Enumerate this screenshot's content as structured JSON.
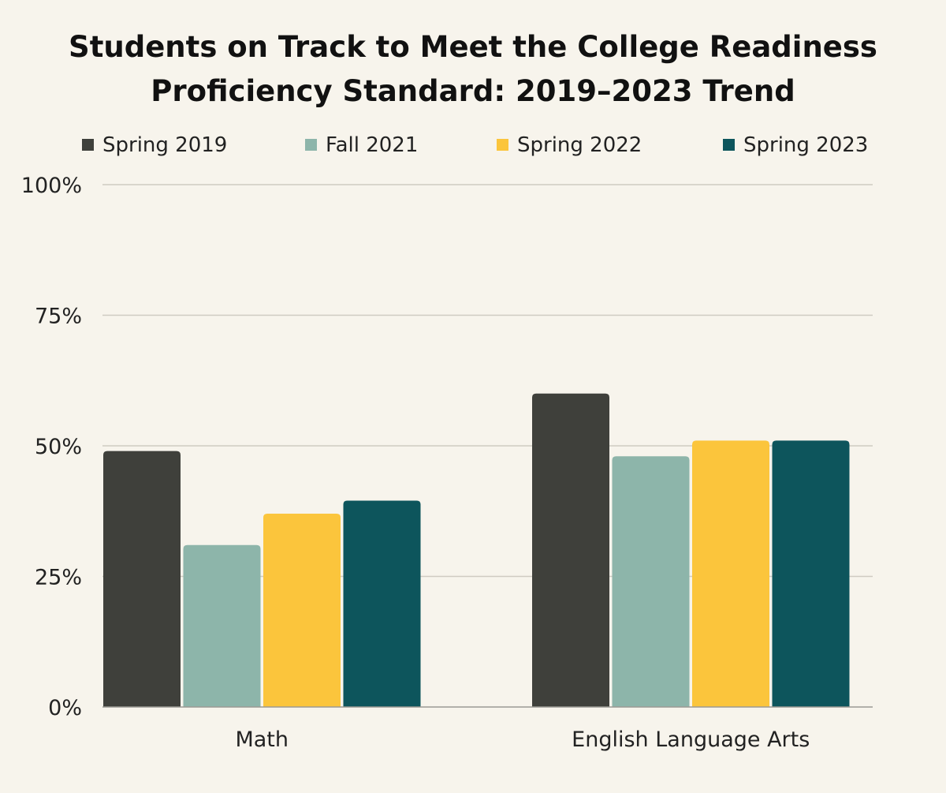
{
  "chart_data": {
    "type": "bar",
    "title_lines": [
      "Students on Track to Meet the College Readiness",
      "Proficiency Standard: 2019–2023 Trend"
    ],
    "categories": [
      "Math",
      "English Language Arts"
    ],
    "series": [
      {
        "name": "Spring 2019",
        "color": "#3f403b",
        "values": [
          49,
          60
        ]
      },
      {
        "name": "Fall 2021",
        "color": "#8db5aa",
        "values": [
          31,
          48
        ]
      },
      {
        "name": "Spring 2022",
        "color": "#fbc53c",
        "values": [
          37,
          51
        ]
      },
      {
        "name": "Spring 2023",
        "color": "#0d555c",
        "values": [
          39.5,
          51
        ]
      }
    ],
    "y_ticks": [
      {
        "value": 0,
        "label": "0%"
      },
      {
        "value": 25,
        "label": "25%"
      },
      {
        "value": 50,
        "label": "50%"
      },
      {
        "value": 75,
        "label": "75%"
      },
      {
        "value": 100,
        "label": "100%"
      }
    ],
    "ylim": [
      0,
      100
    ],
    "grid": true,
    "legend_position": "top"
  }
}
